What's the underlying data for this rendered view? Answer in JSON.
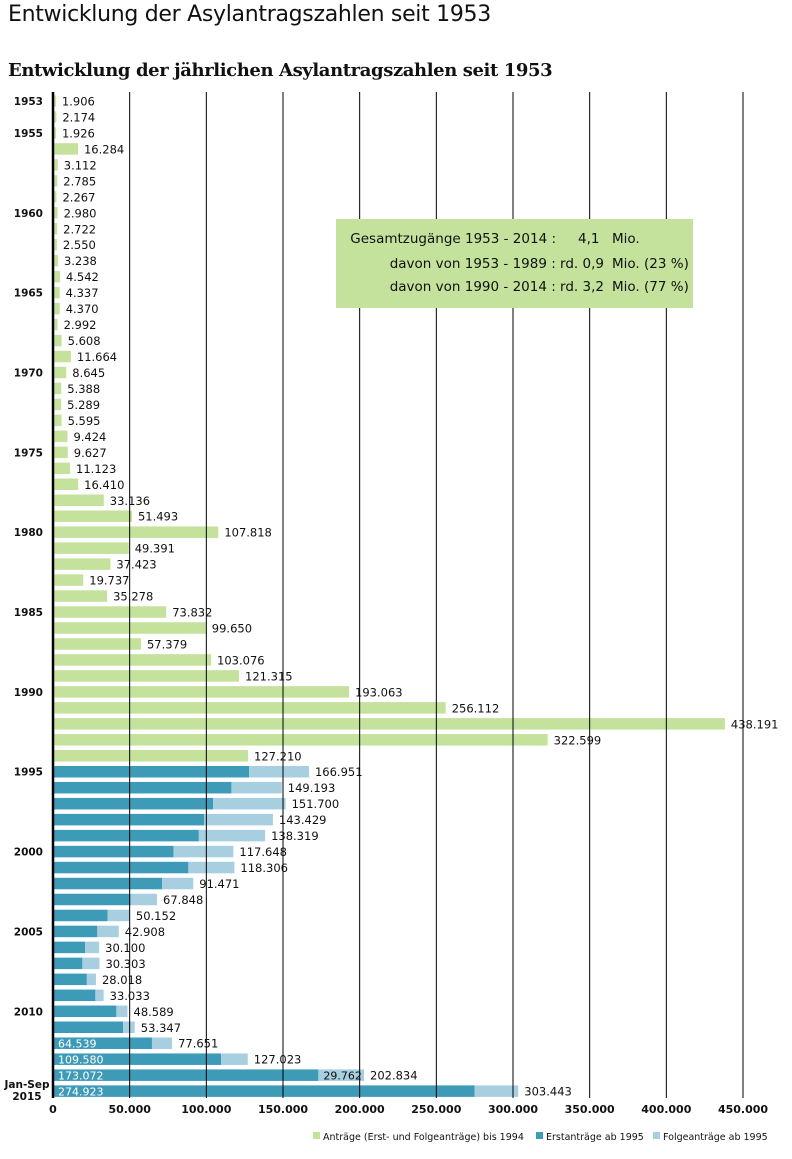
{
  "page_title": "Entwicklung der Asylantragszahlen seit 1953",
  "summary_box": {
    "rows": [
      {
        "label": "Gesamtzugänge 1953 - 2014 :",
        "value": "4,1",
        "unit": "Mio."
      },
      {
        "label": "davon von 1953 - 1989 : rd. 0,9",
        "value": "",
        "unit": "Mio. (23 %)"
      },
      {
        "label": "davon von 1990 - 2014 : rd. 3,2",
        "value": "",
        "unit": "Mio. (77 %)"
      }
    ]
  },
  "colors": {
    "total": "#c5e29c",
    "first": "#3e9bb8",
    "follow": "#a8cfe0",
    "gridline": "#000000"
  },
  "chart_data": {
    "type": "bar",
    "orientation": "horizontal",
    "stacked": true,
    "title": "Entwicklung der jährlichen Asylantragszahlen seit 1953",
    "xlim": [
      0,
      450000
    ],
    "x_ticks": [
      "0",
      "50.000",
      "100.000",
      "150.000",
      "200.000",
      "250.000",
      "300.000",
      "350.000",
      "400.000",
      "450.000"
    ],
    "x_tick_values": [
      0,
      50000,
      100000,
      150000,
      200000,
      250000,
      300000,
      350000,
      400000,
      450000
    ],
    "grid": true,
    "legend": [
      {
        "key": "total",
        "label": "Anträge (Erst- und Folgeanträge) bis 1994"
      },
      {
        "key": "first",
        "label": "Erstanträge ab 1995"
      },
      {
        "key": "follow",
        "label": "Folgeanträge ab 1995"
      }
    ],
    "years": [
      {
        "year": 1953,
        "label": "1953",
        "total": 1906,
        "total_label": "1.906"
      },
      {
        "year": 1954,
        "label": "",
        "total": 2174,
        "total_label": "2.174"
      },
      {
        "year": 1955,
        "label": "1955",
        "total": 1926,
        "total_label": "1.926"
      },
      {
        "year": 1956,
        "label": "",
        "total": 16284,
        "total_label": "16.284"
      },
      {
        "year": 1957,
        "label": "",
        "total": 3112,
        "total_label": "3.112"
      },
      {
        "year": 1958,
        "label": "",
        "total": 2785,
        "total_label": "2.785"
      },
      {
        "year": 1959,
        "label": "",
        "total": 2267,
        "total_label": "2.267"
      },
      {
        "year": 1960,
        "label": "1960",
        "total": 2980,
        "total_label": "2.980"
      },
      {
        "year": 1961,
        "label": "",
        "total": 2722,
        "total_label": "2.722"
      },
      {
        "year": 1962,
        "label": "",
        "total": 2550,
        "total_label": "2.550"
      },
      {
        "year": 1963,
        "label": "",
        "total": 3238,
        "total_label": "3.238"
      },
      {
        "year": 1964,
        "label": "",
        "total": 4542,
        "total_label": "4.542"
      },
      {
        "year": 1965,
        "label": "1965",
        "total": 4337,
        "total_label": "4.337"
      },
      {
        "year": 1966,
        "label": "",
        "total": 4370,
        "total_label": "4.370"
      },
      {
        "year": 1967,
        "label": "",
        "total": 2992,
        "total_label": "2.992"
      },
      {
        "year": 1968,
        "label": "",
        "total": 5608,
        "total_label": "5.608"
      },
      {
        "year": 1969,
        "label": "",
        "total": 11664,
        "total_label": "11.664"
      },
      {
        "year": 1970,
        "label": "1970",
        "total": 8645,
        "total_label": "8.645"
      },
      {
        "year": 1971,
        "label": "",
        "total": 5388,
        "total_label": "5.388"
      },
      {
        "year": 1972,
        "label": "",
        "total": 5289,
        "total_label": "5.289"
      },
      {
        "year": 1973,
        "label": "",
        "total": 5595,
        "total_label": "5.595"
      },
      {
        "year": 1974,
        "label": "",
        "total": 9424,
        "total_label": "9.424"
      },
      {
        "year": 1975,
        "label": "1975",
        "total": 9627,
        "total_label": "9.627"
      },
      {
        "year": 1976,
        "label": "",
        "total": 11123,
        "total_label": "11.123"
      },
      {
        "year": 1977,
        "label": "",
        "total": 16410,
        "total_label": "16.410"
      },
      {
        "year": 1978,
        "label": "",
        "total": 33136,
        "total_label": "33.136"
      },
      {
        "year": 1979,
        "label": "",
        "total": 51493,
        "total_label": "51.493"
      },
      {
        "year": 1980,
        "label": "1980",
        "total": 107818,
        "total_label": "107.818"
      },
      {
        "year": 1981,
        "label": "",
        "total": 49391,
        "total_label": "49.391"
      },
      {
        "year": 1982,
        "label": "",
        "total": 37423,
        "total_label": "37.423"
      },
      {
        "year": 1983,
        "label": "",
        "total": 19737,
        "total_label": "19.737"
      },
      {
        "year": 1984,
        "label": "",
        "total": 35278,
        "total_label": "35.278"
      },
      {
        "year": 1985,
        "label": "1985",
        "total": 73832,
        "total_label": "73.832"
      },
      {
        "year": 1986,
        "label": "",
        "total": 99650,
        "total_label": "99.650"
      },
      {
        "year": 1987,
        "label": "",
        "total": 57379,
        "total_label": "57.379"
      },
      {
        "year": 1988,
        "label": "",
        "total": 103076,
        "total_label": "103.076"
      },
      {
        "year": 1989,
        "label": "",
        "total": 121315,
        "total_label": "121.315"
      },
      {
        "year": 1990,
        "label": "1990",
        "total": 193063,
        "total_label": "193.063"
      },
      {
        "year": 1991,
        "label": "",
        "total": 256112,
        "total_label": "256.112"
      },
      {
        "year": 1992,
        "label": "",
        "total": 438191,
        "total_label": "438.191"
      },
      {
        "year": 1993,
        "label": "",
        "total": 322599,
        "total_label": "322.599"
      },
      {
        "year": 1994,
        "label": "",
        "total": 127210,
        "total_label": "127.210"
      },
      {
        "year": 1995,
        "label": "1995",
        "first": 127937,
        "follow": 39014,
        "total": 166951,
        "total_label": "166.951"
      },
      {
        "year": 1996,
        "label": "",
        "first": 116367,
        "follow": 32826,
        "total": 149193,
        "total_label": "149.193"
      },
      {
        "year": 1997,
        "label": "",
        "first": 104353,
        "follow": 47347,
        "total": 151700,
        "total_label": "151.700"
      },
      {
        "year": 1998,
        "label": "",
        "first": 98644,
        "follow": 44785,
        "total": 143429,
        "total_label": "143.429"
      },
      {
        "year": 1999,
        "label": "",
        "first": 95113,
        "follow": 43206,
        "total": 138319,
        "total_label": "138.319"
      },
      {
        "year": 2000,
        "label": "2000",
        "first": 78564,
        "follow": 39084,
        "total": 117648,
        "total_label": "117.648"
      },
      {
        "year": 2001,
        "label": "",
        "first": 88287,
        "follow": 30019,
        "total": 118306,
        "total_label": "118.306"
      },
      {
        "year": 2002,
        "label": "",
        "first": 71127,
        "follow": 20344,
        "total": 91471,
        "total_label": "91.471"
      },
      {
        "year": 2003,
        "label": "",
        "first": 50563,
        "follow": 17285,
        "total": 67848,
        "total_label": "67.848"
      },
      {
        "year": 2004,
        "label": "",
        "first": 35607,
        "follow": 14545,
        "total": 50152,
        "total_label": "50.152"
      },
      {
        "year": 2005,
        "label": "2005",
        "first": 28914,
        "follow": 13994,
        "total": 42908,
        "total_label": "42.908"
      },
      {
        "year": 2006,
        "label": "",
        "first": 21029,
        "follow": 9071,
        "total": 30100,
        "total_label": "30.100"
      },
      {
        "year": 2007,
        "label": "",
        "first": 19164,
        "follow": 11139,
        "total": 30303,
        "total_label": "30.303"
      },
      {
        "year": 2008,
        "label": "",
        "first": 22085,
        "follow": 5933,
        "total": 28018,
        "total_label": "28.018"
      },
      {
        "year": 2009,
        "label": "",
        "first": 27649,
        "follow": 5384,
        "total": 33033,
        "total_label": "33.033"
      },
      {
        "year": 2010,
        "label": "2010",
        "first": 41332,
        "follow": 7257,
        "total": 48589,
        "total_label": "48.589"
      },
      {
        "year": 2011,
        "label": "",
        "first": 45741,
        "follow": 7606,
        "total": 53347,
        "total_label": "53.347"
      },
      {
        "year": 2012,
        "label": "",
        "first": 64539,
        "follow": 13112,
        "total": 77651,
        "total_label": "77.651",
        "first_label": "64.539"
      },
      {
        "year": 2013,
        "label": "",
        "first": 109580,
        "follow": 17443,
        "total": 127023,
        "total_label": "127.023",
        "first_label": "109.580"
      },
      {
        "year": 2014,
        "label": "",
        "first": 173072,
        "follow": 29762,
        "total": 202834,
        "total_label": "202.834",
        "first_label": "173.072",
        "follow_label": "29.762"
      },
      {
        "year": 2015,
        "label": "Jan-Sep 2015",
        "first": 274923,
        "follow": 28520,
        "total": 303443,
        "total_label": "303.443",
        "first_label": "274.923"
      }
    ]
  }
}
